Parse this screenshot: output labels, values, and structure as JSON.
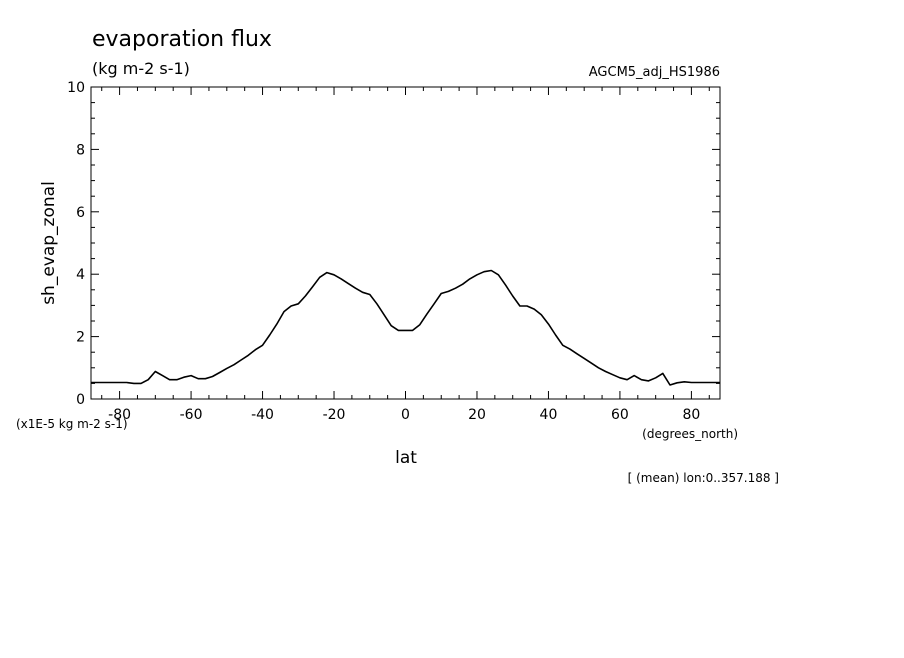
{
  "chart_data": {
    "type": "line",
    "title": "evaporation flux",
    "units": "(kg m-2 s-1)",
    "model_label": "AGCM5_adj_HS1986",
    "xlabel": "lat",
    "x_units": "(degrees_north)",
    "ylabel": "sh_evap_zonal",
    "y_scale_note": "(x1E-5 kg m-2 s-1)",
    "footer_note": "[ (mean) lon:0..357.188 ]",
    "xlim": [
      -88,
      88
    ],
    "ylim": [
      0,
      10
    ],
    "x_ticks": [
      -80,
      -60,
      -40,
      -20,
      0,
      20,
      40,
      60,
      80
    ],
    "y_ticks": [
      0,
      2,
      4,
      6,
      8,
      10
    ],
    "grid": false,
    "series": [
      {
        "x": [
          -88,
          -82,
          -78,
          -76,
          -74,
          -72,
          -70,
          -68,
          -66,
          -64,
          -62,
          -60,
          -58,
          -56,
          -54,
          -52,
          -50,
          -48,
          -46,
          -44,
          -42,
          -40,
          -38,
          -36,
          -34,
          -32,
          -30,
          -28,
          -26,
          -24,
          -22,
          -20,
          -18,
          -16,
          -14,
          -12,
          -10,
          -8,
          -6,
          -4,
          -2,
          0,
          2,
          4,
          6,
          8,
          10,
          12,
          14,
          16,
          18,
          20,
          22,
          24,
          26,
          28,
          30,
          32,
          34,
          36,
          38,
          40,
          42,
          44,
          46,
          48,
          50,
          52,
          54,
          56,
          58,
          60,
          62,
          64,
          66,
          68,
          70,
          72,
          74,
          76,
          78,
          80,
          82,
          84,
          88
        ],
        "y": [
          0.53,
          0.53,
          0.53,
          0.5,
          0.5,
          0.62,
          0.88,
          0.75,
          0.62,
          0.62,
          0.7,
          0.75,
          0.65,
          0.65,
          0.72,
          0.85,
          0.98,
          1.1,
          1.25,
          1.4,
          1.58,
          1.72,
          2.05,
          2.4,
          2.8,
          2.98,
          3.05,
          3.3,
          3.6,
          3.9,
          4.05,
          3.98,
          3.85,
          3.7,
          3.55,
          3.42,
          3.35,
          3.05,
          2.7,
          2.35,
          2.2,
          2.2,
          2.2,
          2.38,
          2.72,
          3.05,
          3.38,
          3.45,
          3.55,
          3.68,
          3.85,
          3.98,
          4.08,
          4.12,
          3.98,
          3.65,
          3.3,
          2.98,
          2.98,
          2.88,
          2.7,
          2.4,
          2.05,
          1.72,
          1.6,
          1.45,
          1.3,
          1.15,
          1.0,
          0.88,
          0.78,
          0.68,
          0.62,
          0.75,
          0.62,
          0.58,
          0.68,
          0.82,
          0.45,
          0.52,
          0.55,
          0.53,
          0.53,
          0.53,
          0.53
        ]
      }
    ]
  }
}
